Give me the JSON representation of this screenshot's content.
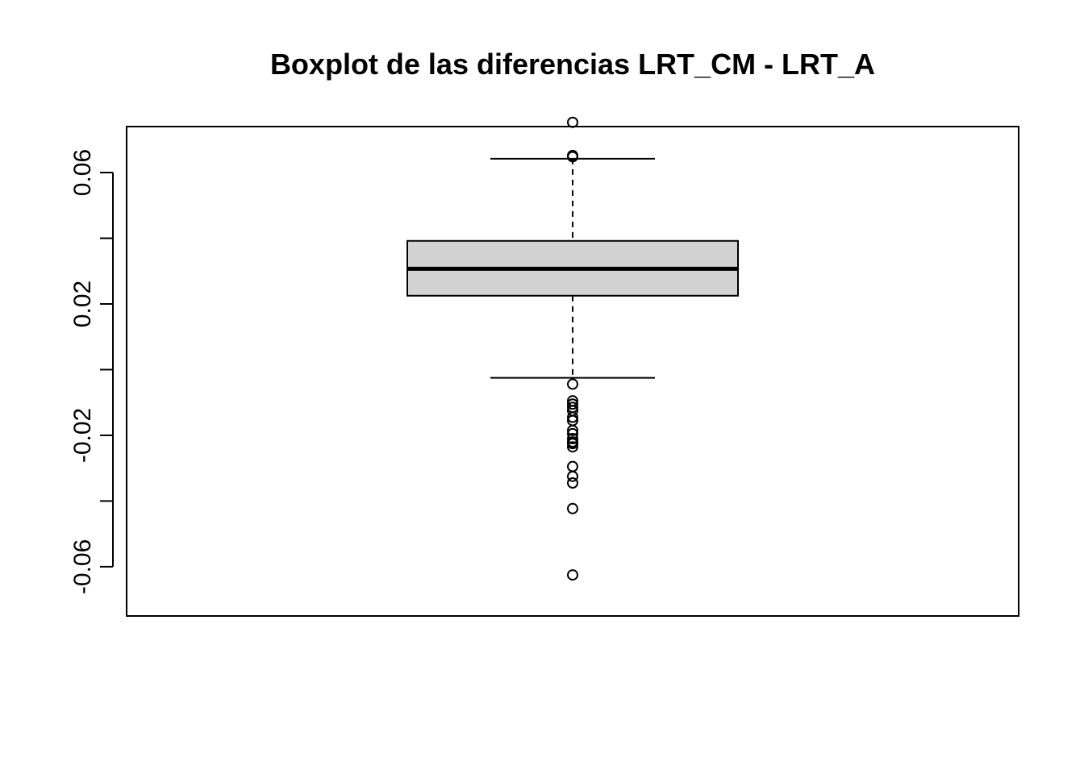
{
  "chart_data": {
    "type": "boxplot",
    "title": "Boxplot de las diferencias LRT_CM - LRT_A",
    "xlabel": "",
    "ylabel": "",
    "ylim": [
      -0.075,
      0.074
    ],
    "y_ticks": [
      -0.06,
      -0.04,
      -0.02,
      0.0,
      0.02,
      0.04,
      0.06
    ],
    "y_tick_labels": [
      "-0.06",
      "",
      "-0.02",
      "",
      "0.02",
      "",
      "0.06"
    ],
    "box": {
      "whisker_low": -0.0025,
      "q1": 0.0225,
      "median": 0.0307,
      "q3": 0.0392,
      "whisker_high": 0.0642
    },
    "outliers": [
      0.0753,
      0.0652,
      0.0648,
      -0.0044,
      -0.0095,
      -0.0105,
      -0.0115,
      -0.0125,
      -0.0145,
      -0.0155,
      -0.0185,
      -0.0195,
      -0.021,
      -0.022,
      -0.0225,
      -0.0235,
      -0.0295,
      -0.0325,
      -0.0345,
      -0.0423,
      -0.0625
    ],
    "box_fill": "#d3d3d3",
    "grid": false
  }
}
